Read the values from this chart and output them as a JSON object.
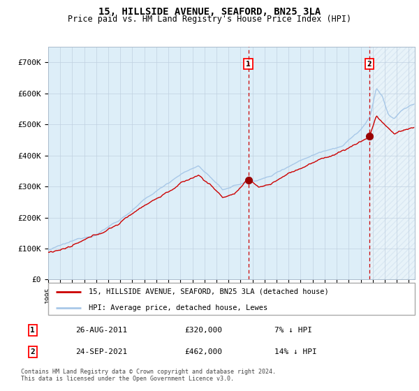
{
  "title": "15, HILLSIDE AVENUE, SEAFORD, BN25 3LA",
  "subtitle": "Price paid vs. HM Land Registry's House Price Index (HPI)",
  "legend_line1": "15, HILLSIDE AVENUE, SEAFORD, BN25 3LA (detached house)",
  "legend_line2": "HPI: Average price, detached house, Lewes",
  "note1_date": "26-AUG-2011",
  "note1_price": "£320,000",
  "note1_hpi": "7% ↓ HPI",
  "note2_date": "24-SEP-2021",
  "note2_price": "£462,000",
  "note2_hpi": "14% ↓ HPI",
  "footer": "Contains HM Land Registry data © Crown copyright and database right 2024.\nThis data is licensed under the Open Government Licence v3.0.",
  "hpi_color": "#a8c8e8",
  "price_color": "#cc0000",
  "marker_color": "#990000",
  "vline_color": "#cc0000",
  "bg_color": "#ddeef8",
  "grid_color": "#c0d0e0",
  "ylim": [
    0,
    750000
  ],
  "yticks": [
    0,
    100000,
    200000,
    300000,
    400000,
    500000,
    600000,
    700000
  ],
  "ytick_labels": [
    "£0",
    "£100K",
    "£200K",
    "£300K",
    "£400K",
    "£500K",
    "£600K",
    "£700K"
  ],
  "purchase1_year": 2011.65,
  "purchase1_price": 320000,
  "purchase2_year": 2021.73,
  "purchase2_price": 462000,
  "xmin": 1995,
  "xmax": 2025.5
}
